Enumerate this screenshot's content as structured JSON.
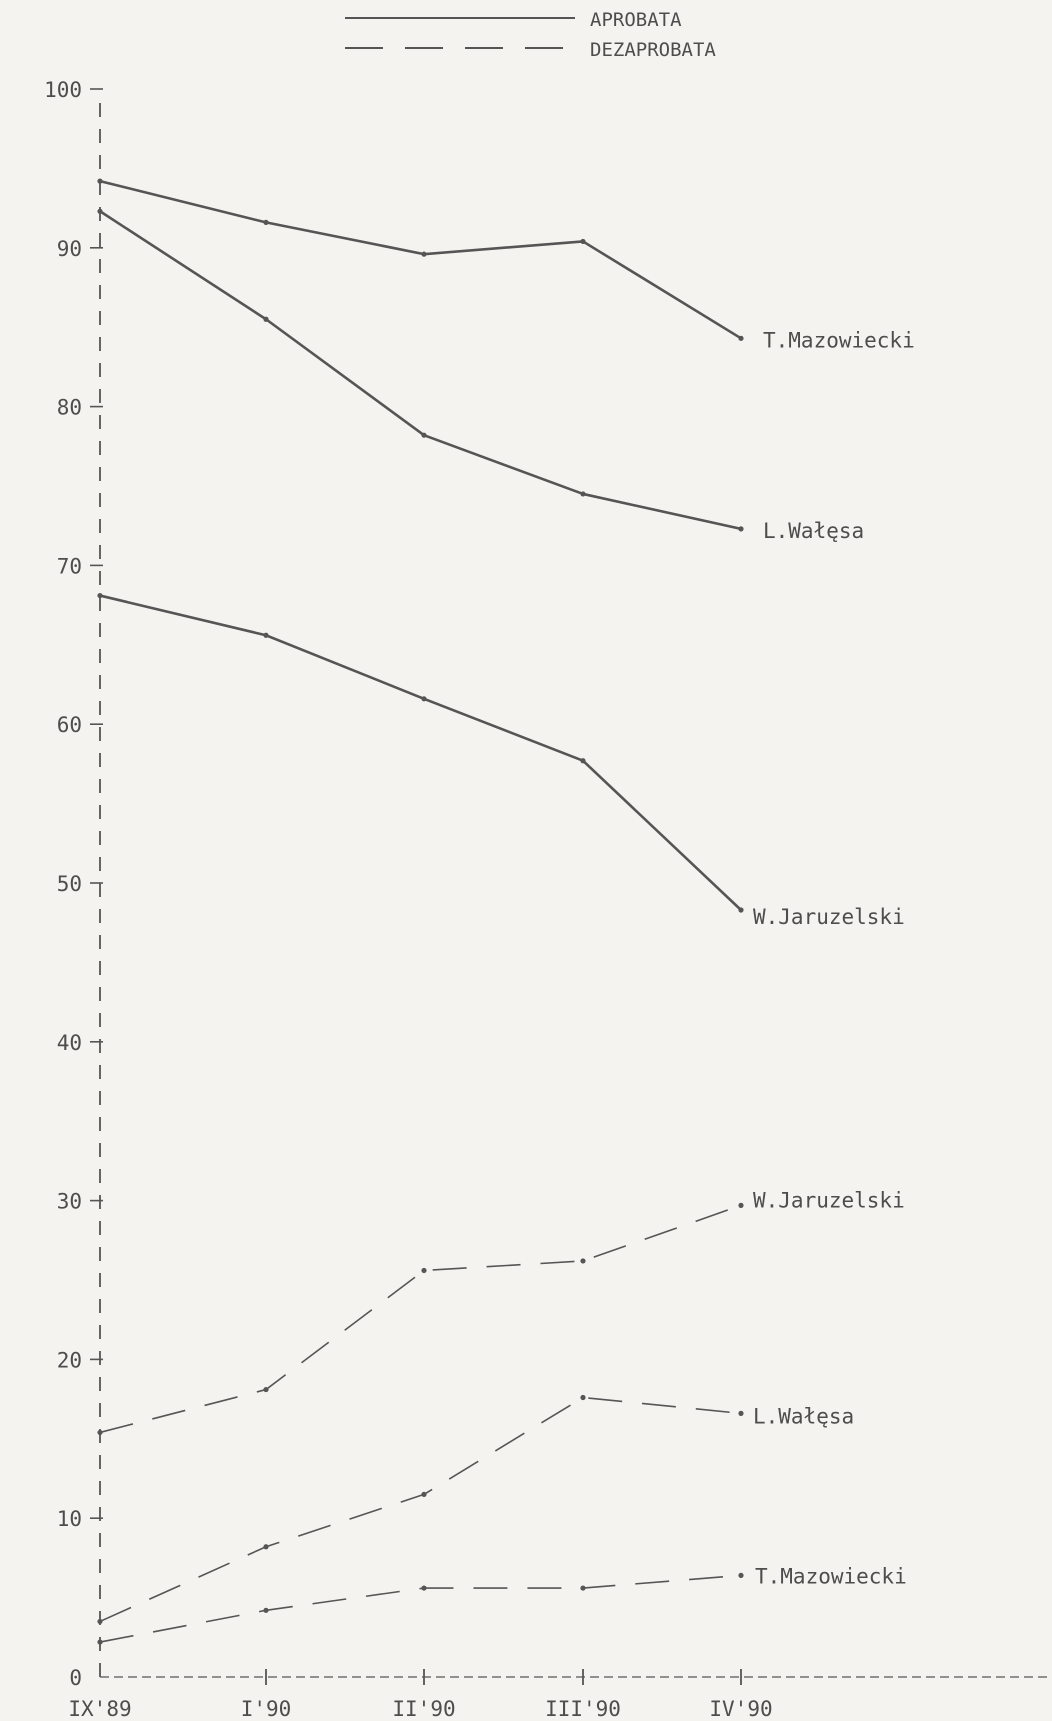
{
  "chart_data": {
    "type": "line",
    "x_labels": [
      "IX'89",
      "I'90",
      "II'90",
      "III'90",
      "IV'90"
    ],
    "y_ticks": [
      0,
      10,
      20,
      30,
      40,
      50,
      60,
      70,
      80,
      90,
      100
    ],
    "ylim": [
      0,
      100
    ],
    "legend": [
      {
        "label": "APROBATA",
        "style": "solid"
      },
      {
        "label": "DEZAPROBATA",
        "style": "dashed"
      }
    ],
    "series": [
      {
        "name": "T.Mazowiecki",
        "group": "APROBATA",
        "style": "solid",
        "values": [
          94.2,
          91.6,
          89.6,
          90.4,
          84.3
        ]
      },
      {
        "name": "L.Wałęsa",
        "group": "APROBATA",
        "style": "solid",
        "values": [
          92.3,
          85.5,
          78.2,
          74.5,
          72.3
        ]
      },
      {
        "name": "W.Jaruzelski",
        "group": "APROBATA",
        "style": "solid",
        "values": [
          68.1,
          65.6,
          61.6,
          57.7,
          48.3
        ]
      },
      {
        "name": "W.Jaruzelski",
        "group": "DEZAPROBATA",
        "style": "dashed",
        "values": [
          15.4,
          18.1,
          25.6,
          26.2,
          29.7
        ]
      },
      {
        "name": "L.Wałęsa",
        "group": "DEZAPROBATA",
        "style": "dashed",
        "values": [
          3.5,
          8.2,
          11.5,
          17.6,
          16.6
        ]
      },
      {
        "name": "T.Mazowiecki",
        "group": "DEZAPROBATA",
        "style": "dashed",
        "values": [
          2.2,
          4.2,
          5.6,
          5.6,
          6.4
        ]
      }
    ],
    "colors": {
      "line": "#555555",
      "text": "#4d4d4d",
      "background": "#f4f3ef"
    }
  }
}
